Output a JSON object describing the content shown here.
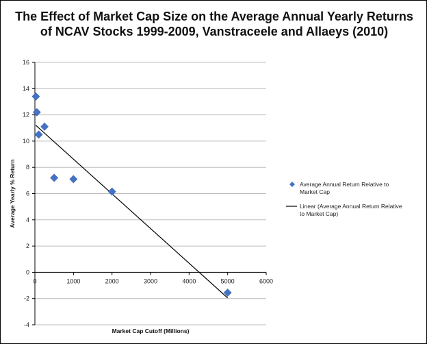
{
  "chart_data": {
    "type": "scatter",
    "title": "The Effect of Market Cap Size on the Average Annual Yearly Returns of NCAV Stocks 1999-2009, Vanstraceele and Allaeys (2010)",
    "xlabel": "Market Cap Cutoff (Millions)",
    "ylabel": "Average Yearly % Return",
    "xlim": [
      0,
      6000
    ],
    "ylim": [
      -4,
      16
    ],
    "x_ticks": [
      "0",
      "1000",
      "2000",
      "3000",
      "4000",
      "5000",
      "6000"
    ],
    "y_ticks": [
      "-4",
      "-2",
      "0",
      "2",
      "4",
      "6",
      "8",
      "10",
      "12",
      "14",
      "16"
    ],
    "grid": "horizontal",
    "legend_position": "right",
    "series": [
      {
        "name": "Average Annual Return Relative to Market Cap",
        "marker": "diamond",
        "color": "#4472C4",
        "x": [
          25,
          50,
          100,
          250,
          500,
          1000,
          2000,
          5000
        ],
        "y": [
          13.4,
          12.2,
          10.5,
          11.1,
          7.2,
          7.1,
          6.15,
          -1.55
        ]
      }
    ],
    "trendline": {
      "name": "Linear (Average Annual Return Relative to Market Cap)",
      "color": "#000000",
      "x": [
        25,
        5000
      ],
      "y": [
        11.2,
        -1.95
      ]
    }
  }
}
